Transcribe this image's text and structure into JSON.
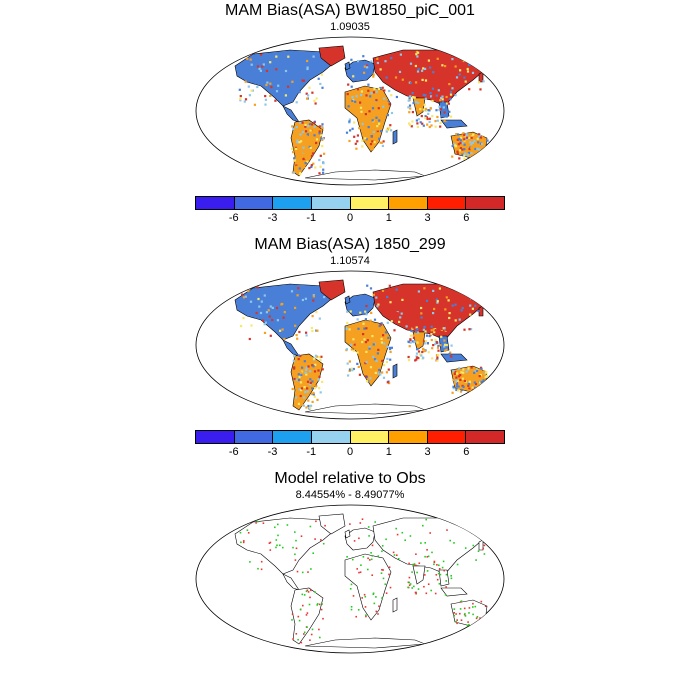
{
  "panels": [
    {
      "title": "MAM Bias(ASA) BW1850_piC_001",
      "subtitle": "1.09035"
    },
    {
      "title": "MAM Bias(ASA) 1850_299",
      "subtitle": "1.10574"
    },
    {
      "title": "Model relative to Obs",
      "subtitle": "8.44554% - 8.49077%"
    }
  ],
  "colorbar": {
    "colors": [
      "#3a1ef0",
      "#4169e1",
      "#1ea0f0",
      "#96d2f0",
      "#fff064",
      "#ffa000",
      "#ff1e00",
      "#d22828"
    ],
    "labels": [
      "-6",
      "-3",
      "-1",
      "0",
      "1",
      "3",
      "6"
    ]
  },
  "colors": {
    "land_blue": "#4a7fd8",
    "land_red": "#d6332a",
    "land_orange": "#f5a020",
    "land_yellow": "#f7e86a",
    "land_light_blue": "#8cc8ee",
    "dot_green": "#22cc22",
    "dot_red": "#ee3333"
  }
}
